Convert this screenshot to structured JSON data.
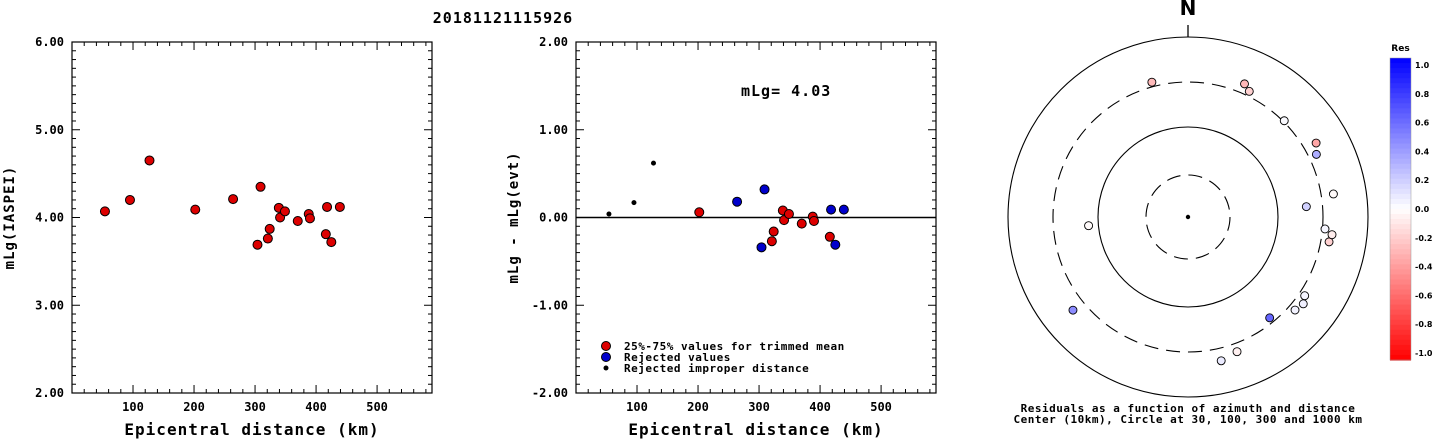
{
  "header": {
    "event_id": "20181121115926"
  },
  "chart_data": [
    {
      "type": "scatter",
      "title": "",
      "xlabel": "Epicentral distance (km)",
      "ylabel": "mLg(IASPEI)",
      "xlim": [
        0,
        590
      ],
      "ylim": [
        2.0,
        6.0
      ],
      "xticks": [
        100,
        200,
        300,
        400,
        500
      ],
      "xtick_labels": [
        "100",
        "200",
        "300",
        "400",
        "500"
      ],
      "yticks": [
        2.0,
        3.0,
        4.0,
        5.0,
        6.0
      ],
      "ytick_labels": [
        "2.00",
        "3.00",
        "4.00",
        "5.00",
        "6.00"
      ],
      "series": [
        {
          "color": "#dd0000",
          "points": [
            {
              "x": 54,
              "y": 4.07
            },
            {
              "x": 95,
              "y": 4.2
            },
            {
              "x": 127,
              "y": 4.65
            },
            {
              "x": 202,
              "y": 4.09
            },
            {
              "x": 264,
              "y": 4.21
            },
            {
              "x": 304,
              "y": 3.69
            },
            {
              "x": 309,
              "y": 4.35
            },
            {
              "x": 321,
              "y": 3.76
            },
            {
              "x": 324,
              "y": 3.87
            },
            {
              "x": 339,
              "y": 4.11
            },
            {
              "x": 341,
              "y": 4.0
            },
            {
              "x": 349,
              "y": 4.07
            },
            {
              "x": 370,
              "y": 3.96
            },
            {
              "x": 388,
              "y": 4.04
            },
            {
              "x": 390,
              "y": 3.99
            },
            {
              "x": 416,
              "y": 3.81
            },
            {
              "x": 418,
              "y": 4.12
            },
            {
              "x": 425,
              "y": 3.72
            },
            {
              "x": 439,
              "y": 4.12
            }
          ]
        }
      ]
    },
    {
      "type": "scatter",
      "title": "",
      "xlabel": "Epicentral distance (km)",
      "ylabel": "mLg - mLg(evt)",
      "xlim": [
        0,
        590
      ],
      "ylim": [
        -2.0,
        2.0
      ],
      "xticks": [
        100,
        200,
        300,
        400,
        500
      ],
      "xtick_labels": [
        "100",
        "200",
        "300",
        "400",
        "500"
      ],
      "yticks": [
        -2.0,
        -1.0,
        0.0,
        1.0,
        2.0
      ],
      "ytick_labels": [
        "-2.00",
        "-1.00",
        "0.00",
        "1.00",
        "2.00"
      ],
      "annotation": "mLg= 4.03",
      "reference_line": 0.0,
      "legend": {
        "position": "bottom-left",
        "entries": [
          {
            "label": "25%-75% values for trimmed mean",
            "color": "#dd0000"
          },
          {
            "label": "Rejected values",
            "color": "#0000cc"
          },
          {
            "label": "Rejected improper distance",
            "color": "#000000"
          }
        ]
      },
      "series": [
        {
          "legend_index": 0,
          "points": [
            {
              "x": 202,
              "y": 0.06
            },
            {
              "x": 321,
              "y": -0.27
            },
            {
              "x": 324,
              "y": -0.16
            },
            {
              "x": 339,
              "y": 0.08
            },
            {
              "x": 341,
              "y": -0.03
            },
            {
              "x": 349,
              "y": 0.04
            },
            {
              "x": 370,
              "y": -0.07
            },
            {
              "x": 388,
              "y": 0.01
            },
            {
              "x": 390,
              "y": -0.04
            },
            {
              "x": 416,
              "y": -0.22
            }
          ]
        },
        {
          "legend_index": 1,
          "points": [
            {
              "x": 264,
              "y": 0.18
            },
            {
              "x": 304,
              "y": -0.34
            },
            {
              "x": 309,
              "y": 0.32
            },
            {
              "x": 418,
              "y": 0.09
            },
            {
              "x": 425,
              "y": -0.31
            },
            {
              "x": 439,
              "y": 0.09
            }
          ]
        },
        {
          "legend_index": 2,
          "points": [
            {
              "x": 54,
              "y": 0.04
            },
            {
              "x": 95,
              "y": 0.17
            },
            {
              "x": 127,
              "y": 0.62
            }
          ]
        }
      ]
    },
    {
      "type": "scatter",
      "subtype": "polar-azimuth-distance",
      "north_label": "N",
      "caption": [
        "Residuals as a function of azimuth and distance",
        "Center (10km), Circle at 30, 100, 300 and 1000 km"
      ],
      "rings": [
        {
          "km": 30,
          "style": "dashed"
        },
        {
          "km": 100,
          "style": "solid"
        },
        {
          "km": 300,
          "style": "dashed"
        },
        {
          "km": 1000,
          "style": "solid"
        }
      ],
      "colorbar": {
        "title": "Res",
        "range": [
          -1.0,
          1.0
        ],
        "tick_labels": [
          "1.0",
          "0.8",
          "0.6",
          "0.4",
          "0.2",
          "0.0",
          "-0.2",
          "-0.4",
          "-0.6",
          "-0.8",
          "-1.0"
        ],
        "positive_color": "#0000ff",
        "negative_color": "#ff0000"
      },
      "points": [
        {
          "azimuth": 345,
          "distance_km": 339,
          "residual": -0.27
        },
        {
          "azimuth": 26,
          "distance_km": 341,
          "residual": -0.18
        },
        {
          "azimuth": 23,
          "distance_km": 388,
          "residual": -0.28
        },
        {
          "azimuth": 45,
          "distance_km": 309,
          "residual": 0.02
        },
        {
          "azimuth": 60,
          "distance_km": 424,
          "residual": -0.35
        },
        {
          "azimuth": 64,
          "distance_km": 370,
          "residual": 0.32
        },
        {
          "azimuth": 81,
          "distance_km": 416,
          "residual": -0.02
        },
        {
          "azimuth": 85,
          "distance_km": 202,
          "residual": 0.18
        },
        {
          "azimuth": 95,
          "distance_km": 321,
          "residual": 0.04
        },
        {
          "azimuth": 100,
          "distance_km": 374,
          "residual": -0.18
        },
        {
          "azimuth": 97,
          "distance_km": 393,
          "residual": -0.07
        },
        {
          "azimuth": 124,
          "distance_km": 350,
          "residual": 0.04
        },
        {
          "azimuth": 127,
          "distance_km": 385,
          "residual": 0.06
        },
        {
          "azimuth": 131,
          "distance_km": 360,
          "residual": 0.05
        },
        {
          "azimuth": 141,
          "distance_km": 264,
          "residual": 0.6
        },
        {
          "azimuth": 160,
          "distance_km": 375,
          "residual": -0.06
        },
        {
          "azimuth": 167,
          "distance_km": 420,
          "residual": 0.08
        },
        {
          "azimuth": 231,
          "distance_km": 425,
          "residual": 0.45
        },
        {
          "azimuth": 265,
          "distance_km": 127,
          "residual": -0.02
        }
      ]
    }
  ]
}
